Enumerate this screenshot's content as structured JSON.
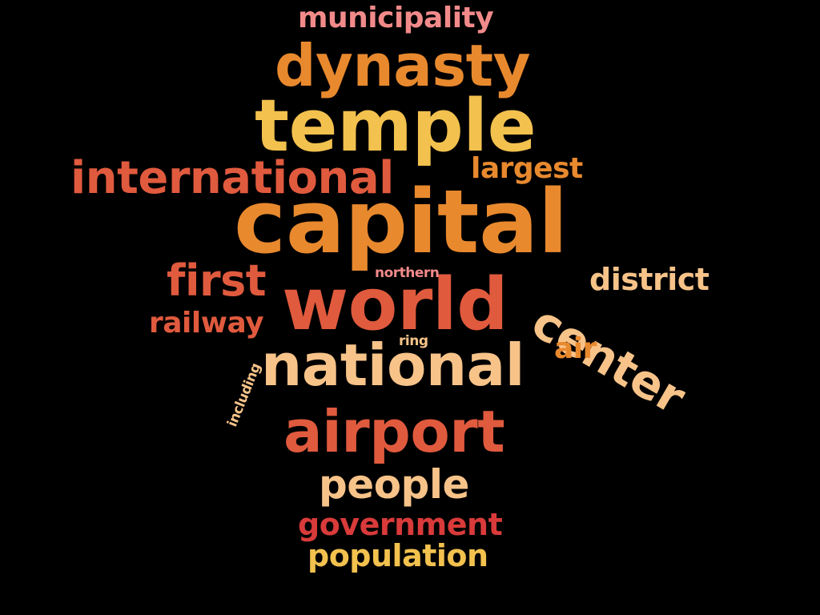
{
  "words": [
    {
      "id": "municipality",
      "text": "municipality",
      "color": "#F28A8A"
    },
    {
      "id": "dynasty",
      "text": "dynasty",
      "color": "#E8892E"
    },
    {
      "id": "temple",
      "text": "temple",
      "color": "#F2C14E"
    },
    {
      "id": "international",
      "text": "international",
      "color": "#E05A3E"
    },
    {
      "id": "largest",
      "text": "largest",
      "color": "#E8892E"
    },
    {
      "id": "capital",
      "text": "capital",
      "color": "#E8892E"
    },
    {
      "id": "first",
      "text": "first",
      "color": "#E05A3E"
    },
    {
      "id": "northern",
      "text": "northern",
      "color": "#F28A8A"
    },
    {
      "id": "center",
      "text": "center",
      "color": "#F7C389"
    },
    {
      "id": "district",
      "text": "district",
      "color": "#F7C389"
    },
    {
      "id": "world",
      "text": "world",
      "color": "#E05A3E"
    },
    {
      "id": "railway",
      "text": "railway",
      "color": "#E05A3E"
    },
    {
      "id": "ring",
      "text": "ring",
      "color": "#F7C389"
    },
    {
      "id": "air",
      "text": "air",
      "color": "#E8892E"
    },
    {
      "id": "including",
      "text": "including",
      "color": "#F7C389"
    },
    {
      "id": "national",
      "text": "national",
      "color": "#F7C389"
    },
    {
      "id": "airport",
      "text": "airport",
      "color": "#E05A3E"
    },
    {
      "id": "people",
      "text": "people",
      "color": "#F7C389"
    },
    {
      "id": "government",
      "text": "government",
      "color": "#D93A3A"
    },
    {
      "id": "population",
      "text": "population",
      "color": "#F2C14E"
    }
  ]
}
